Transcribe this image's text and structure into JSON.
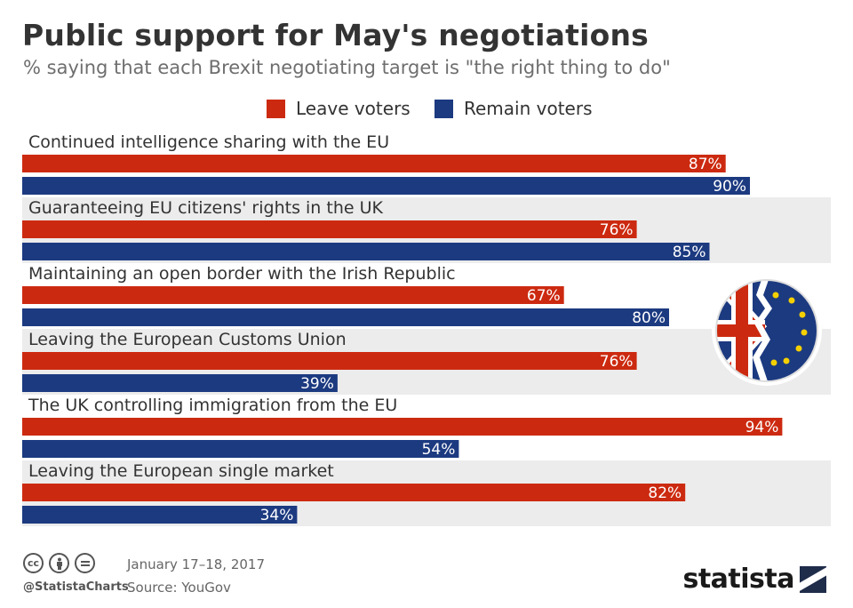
{
  "header": {
    "title": "Public support for May's negotiations",
    "subtitle": "% saying that each Brexit negotiating target is \"the right thing to do\""
  },
  "colors": {
    "leave": "#cc2a10",
    "remain": "#1c3a80",
    "row_band": "#ececec"
  },
  "chart_data": {
    "type": "bar",
    "orientation": "horizontal",
    "title": "Public support for May's negotiations",
    "subtitle": "% saying that each Brexit negotiating target is \"the right thing to do\"",
    "categories": [
      "Continued intelligence sharing with the EU",
      "Guaranteeing EU citizens' rights in the UK",
      "Maintaining an open border with the Irish Republic",
      "Leaving the European Customs Union",
      "The UK controlling immigration from the EU",
      "Leaving the European single market"
    ],
    "series": [
      {
        "name": "Leave voters",
        "values": [
          87,
          76,
          67,
          76,
          94,
          82
        ],
        "color": "#cc2a10"
      },
      {
        "name": "Remain voters",
        "values": [
          90,
          85,
          80,
          39,
          54,
          34
        ],
        "color": "#1c3a80"
      }
    ],
    "value_suffix": "%",
    "xlim": [
      0,
      100
    ],
    "legend": "top-center",
    "grid": false
  },
  "footer": {
    "date": "January 17–18, 2017",
    "source": "Source: YouGov",
    "handle": "@StatistaCharts",
    "brand": "statista",
    "license_icons": [
      "cc-icon",
      "by-icon",
      "nd-icon"
    ]
  }
}
